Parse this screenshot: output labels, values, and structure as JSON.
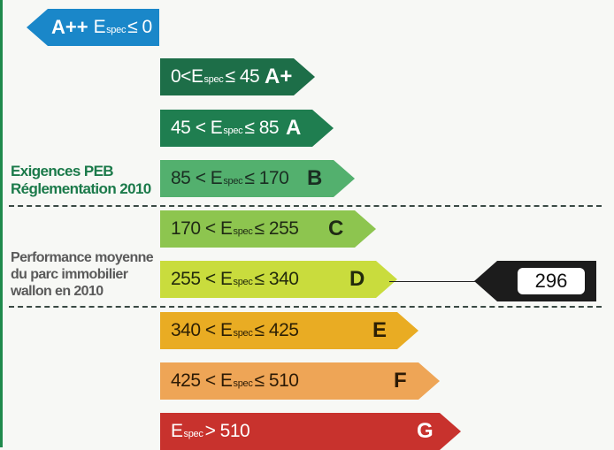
{
  "labels": {
    "exigences_line1": "Exigences PEB",
    "exigences_line2": "Réglementation 2010",
    "performance_line1": "Performance moyenne",
    "performance_line2": "du parc immobilier",
    "performance_line3": "wallon en 2010"
  },
  "bands": [
    {
      "id": "a-plus-plus",
      "range_pre": "",
      "range_e": "E",
      "range_sub": "spec",
      "range_post": "≤ 0",
      "letter": "A++",
      "color": "#1a87c9",
      "text_color": "#ffffff"
    },
    {
      "id": "a-plus",
      "range_pre": "0<",
      "range_e": "E",
      "range_sub": "spec",
      "range_post": "≤ 45",
      "letter": "A+",
      "color": "#1d6e48",
      "text_color": "#ffffff"
    },
    {
      "id": "a",
      "range_pre": "45 < ",
      "range_e": "E",
      "range_sub": "spec",
      "range_post": "≤ 85",
      "letter": "A",
      "color": "#1f7e50",
      "text_color": "#ffffff"
    },
    {
      "id": "b",
      "range_pre": "85 < ",
      "range_e": "E",
      "range_sub": "spec",
      "range_post": "≤ 170",
      "letter": "B",
      "color": "#53b06e",
      "text_color": "#1a2e22"
    },
    {
      "id": "c",
      "range_pre": "170 < ",
      "range_e": "E",
      "range_sub": "spec",
      "range_post": "≤ 255",
      "letter": "C",
      "color": "#8dc54f",
      "text_color": "#1f2a14"
    },
    {
      "id": "d",
      "range_pre": "255 < ",
      "range_e": "E",
      "range_sub": "spec",
      "range_post": "≤ 340",
      "letter": "D",
      "color": "#c9dc3d",
      "text_color": "#222a0c"
    },
    {
      "id": "e",
      "range_pre": "340 < ",
      "range_e": "E",
      "range_sub": "spec",
      "range_post": "≤ 425",
      "letter": "E",
      "color": "#e9ac23",
      "text_color": "#2c1f04"
    },
    {
      "id": "f",
      "range_pre": "425 < ",
      "range_e": "E",
      "range_sub": "spec",
      "range_post": "≤ 510",
      "letter": "F",
      "color": "#eea556",
      "text_color": "#2c1a05"
    },
    {
      "id": "g",
      "range_pre": "",
      "range_e": "E",
      "range_sub": "spec",
      "range_post": "> 510",
      "letter": "G",
      "color": "#c8322d",
      "text_color": "#ffffff"
    }
  ],
  "indicator": {
    "value": "296",
    "class": "D"
  },
  "colors": {
    "left_stripe": "#1f8a4c",
    "labels": "#1b7a4a",
    "dash": "#3a4a44",
    "pointer": "#1c1c1c"
  }
}
